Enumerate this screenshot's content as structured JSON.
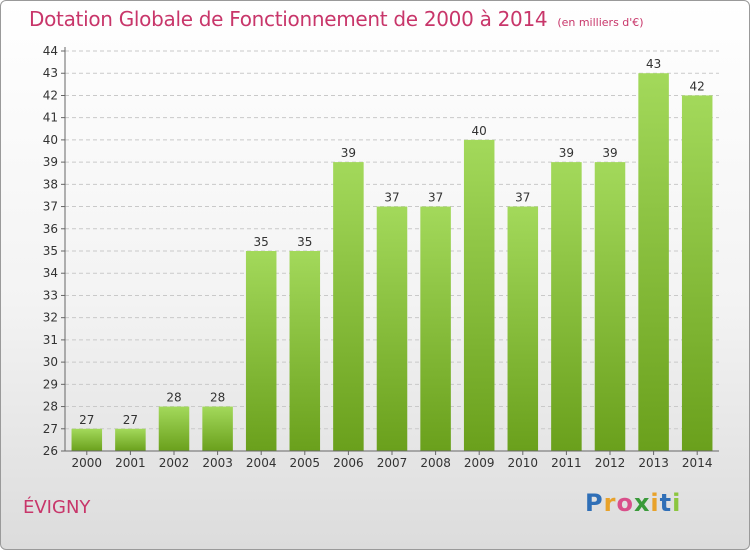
{
  "header": {
    "title": "Dotation Globale de Fonctionnement de 2000 à 2014",
    "subtitle": "(en milliers d'€)"
  },
  "footer": {
    "place": "ÉVIGNY",
    "logo_letters": [
      "P",
      "r",
      "o",
      "x",
      "i",
      "t",
      "i"
    ],
    "logo_colors": [
      "#2f6fb7",
      "#e8a22a",
      "#d94f8a",
      "#3a9a3a",
      "#e8a22a",
      "#2f6fb7",
      "#8cc63f"
    ]
  },
  "colors": {
    "title": "#c8366a",
    "bar_top": "#a3d95b",
    "bar_bottom": "#6aa01c",
    "grid": "#c9c9c9",
    "axis": "#666666"
  },
  "chart_data": {
    "type": "bar",
    "title": "Dotation Globale de Fonctionnement de 2000 à 2014",
    "subtitle": "(en milliers d'€)",
    "xlabel": "",
    "ylabel": "",
    "categories": [
      "2000",
      "2001",
      "2002",
      "2003",
      "2004",
      "2005",
      "2006",
      "2007",
      "2008",
      "2009",
      "2010",
      "2011",
      "2012",
      "2013",
      "2014"
    ],
    "values": [
      27,
      27,
      28,
      28,
      35,
      35,
      39,
      37,
      37,
      40,
      37,
      39,
      39,
      43,
      42
    ],
    "ylim": [
      26,
      44
    ],
    "yticks": [
      26,
      27,
      28,
      29,
      30,
      31,
      32,
      33,
      34,
      35,
      36,
      37,
      38,
      39,
      40,
      41,
      42,
      43,
      44
    ],
    "grid": true,
    "data_labels": true
  }
}
